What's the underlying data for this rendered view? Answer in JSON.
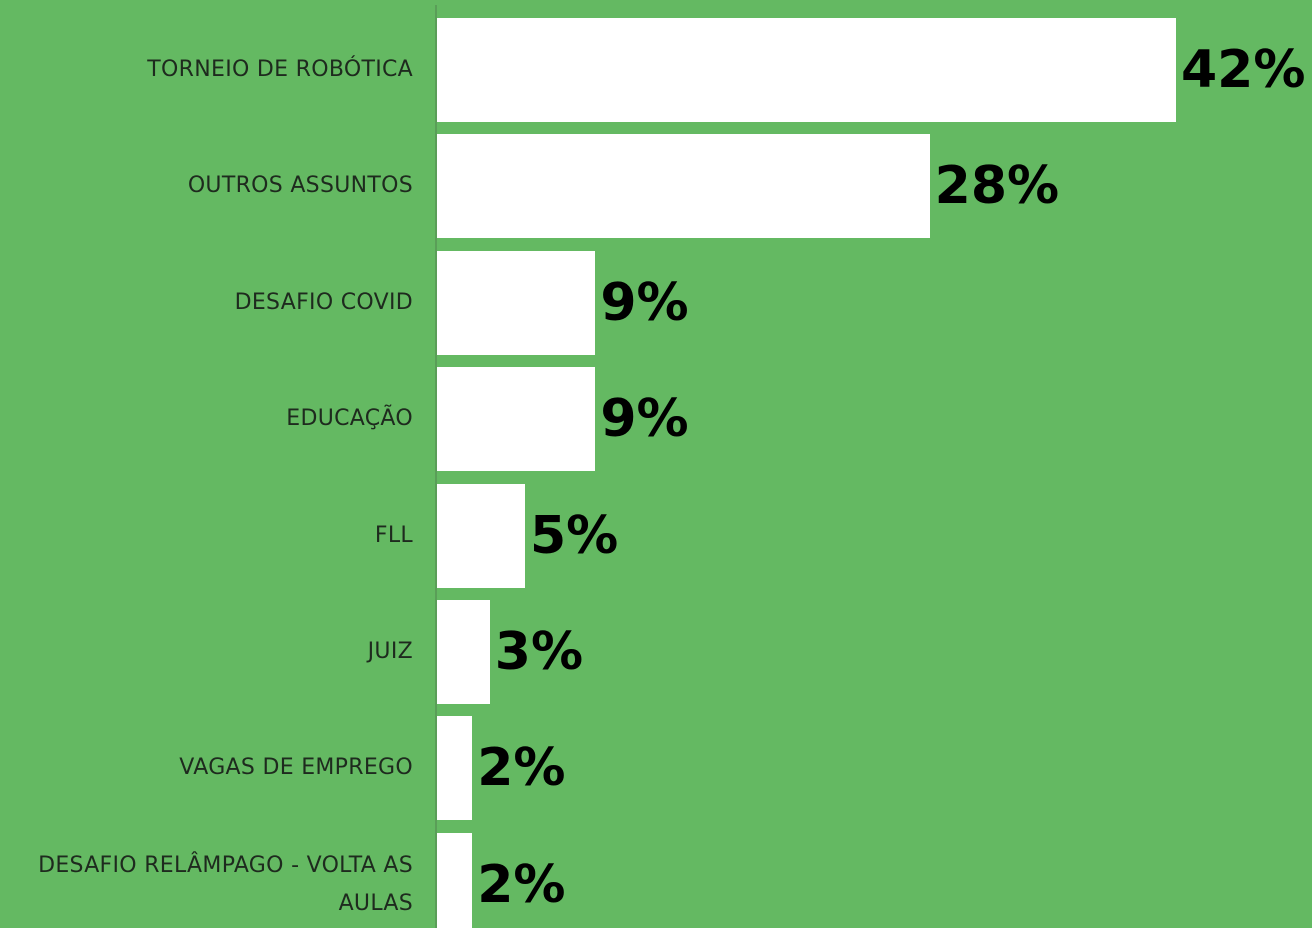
{
  "chart_data": {
    "type": "bar",
    "orientation": "horizontal",
    "categories": [
      "TORNEIO DE ROBÓTICA",
      "OUTROS ASSUNTOS",
      "DESAFIO COVID",
      "EDUCAÇÃO",
      "FLL",
      "JUIZ",
      "VAGAS DE EMPREGO",
      "DESAFIO RELÂMPAGO - VOLTA AS AULAS"
    ],
    "values": [
      42,
      28,
      9,
      9,
      5,
      3,
      2,
      2
    ],
    "value_labels": [
      "42%",
      "28%",
      "9%",
      "9%",
      "5%",
      "3%",
      "2%",
      "2%"
    ],
    "color": "#ffffff"
  }
}
